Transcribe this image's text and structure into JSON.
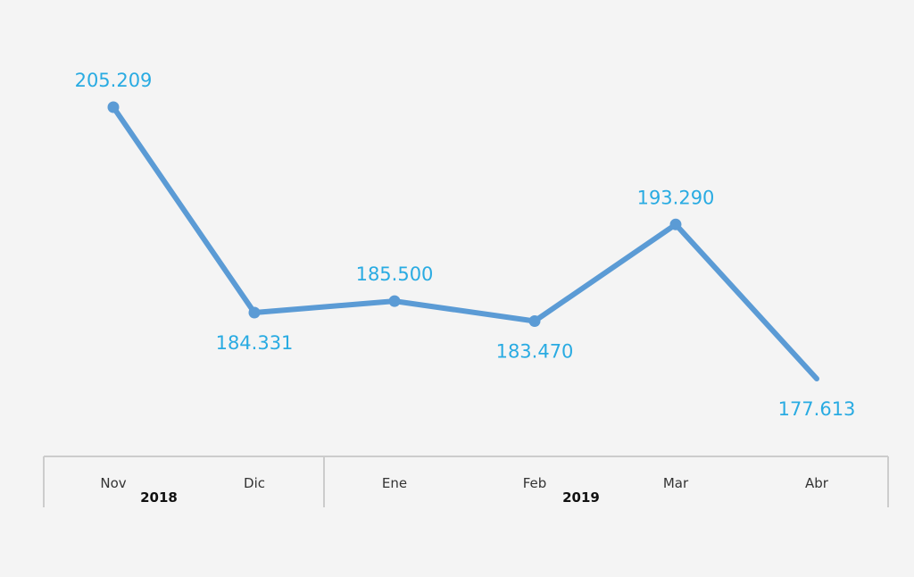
{
  "chart_data": {
    "type": "line",
    "title": "",
    "xlabel": "",
    "ylabel": "",
    "categories": [
      "Nov",
      "Dic",
      "Ene",
      "Feb",
      "Mar",
      "Abr"
    ],
    "year_groups": [
      {
        "label": "2018",
        "categories": [
          "Nov",
          "Dic"
        ]
      },
      {
        "label": "2019",
        "categories": [
          "Ene",
          "Feb",
          "Mar",
          "Abr"
        ]
      }
    ],
    "series": [
      {
        "values": [
          205209,
          184331,
          185500,
          183470,
          193290,
          177613
        ],
        "labels": [
          "205.209",
          "184.331",
          "185.500",
          "183.470",
          "193.290",
          "177.613"
        ],
        "markers": [
          true,
          true,
          true,
          true,
          true,
          false
        ],
        "label_position": [
          "above",
          "below",
          "above",
          "below",
          "above",
          "below"
        ]
      }
    ],
    "ylim": [
      170000,
      210000
    ],
    "grid": false,
    "legend": "none",
    "colors": {
      "line": "#5b9bd5",
      "label": "#29abe2",
      "axis_box": "#cccccc",
      "background": "#f4f4f4"
    }
  }
}
